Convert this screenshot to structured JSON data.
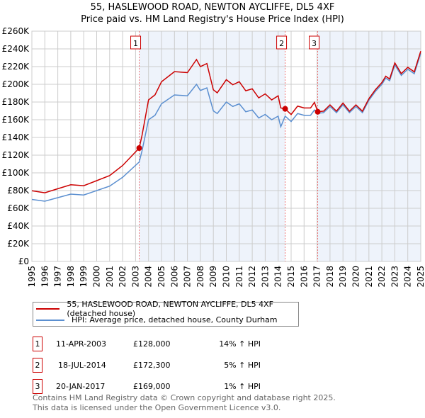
{
  "title": "55, HASLEWOOD ROAD, NEWTON AYCLIFFE, DL5 4XF",
  "subtitle": "Price paid vs. HM Land Registry's House Price Index (HPI)",
  "chart_data": {
    "type": "line",
    "xlim": [
      1995,
      2025
    ],
    "ylim": [
      0,
      260000
    ],
    "yticks": [
      0,
      20000,
      40000,
      60000,
      80000,
      100000,
      120000,
      140000,
      160000,
      180000,
      200000,
      220000,
      240000,
      260000
    ],
    "ytick_labels": [
      "£0",
      "£20K",
      "£40K",
      "£60K",
      "£80K",
      "£100K",
      "£120K",
      "£140K",
      "£160K",
      "£180K",
      "£200K",
      "£220K",
      "£240K",
      "£260K"
    ],
    "xtick_labels": [
      "1995",
      "1996",
      "1997",
      "1998",
      "1999",
      "2000",
      "2001",
      "2002",
      "2003",
      "2004",
      "2005",
      "2006",
      "2007",
      "2008",
      "2009",
      "2010",
      "2011",
      "2012",
      "2013",
      "2014",
      "2015",
      "2016",
      "2017",
      "2018",
      "2019",
      "2020",
      "2021",
      "2022",
      "2023",
      "2024",
      "2025"
    ],
    "grid": true,
    "x": [
      1995,
      1996,
      1997,
      1998,
      1999,
      2000,
      2001,
      2002,
      2003.28,
      2003.5,
      2004,
      2004.5,
      2005,
      2006,
      2007,
      2007.7,
      2008,
      2008.5,
      2009,
      2009.3,
      2010,
      2010.5,
      2011,
      2011.5,
      2012,
      2012.5,
      2013,
      2013.5,
      2014,
      2014.2,
      2014.54,
      2015,
      2015.5,
      2016,
      2016.5,
      2016.8,
      2017.05,
      2017.5,
      2018,
      2018.5,
      2019,
      2019.5,
      2020,
      2020.5,
      2021,
      2021.5,
      2022,
      2022.3,
      2022.6,
      2023,
      2023.5,
      2024,
      2024.5,
      2025
    ],
    "series": [
      {
        "name": "55, HASLEWOOD ROAD, NEWTON AYCLIFFE, DL5 4XF (detached house)",
        "color": "#cc0000",
        "values": [
          79800,
          77500,
          82100,
          86600,
          85500,
          91200,
          96900,
          108300,
          128000,
          142500,
          182400,
          188100,
          202900,
          214300,
          213200,
          228000,
          220000,
          223400,
          193800,
          190400,
          205200,
          199500,
          202900,
          192700,
          194900,
          184700,
          189200,
          182400,
          187000,
          173300,
          172300,
          165900,
          175400,
          173300,
          173300,
          179600,
          169000,
          169700,
          176800,
          169700,
          178800,
          169700,
          176800,
          169700,
          183800,
          193900,
          202000,
          209100,
          206000,
          224200,
          212100,
          219200,
          214100,
          237400
        ]
      },
      {
        "name": "HPI: Average price, detached house, County Durham",
        "color": "#5b8fd0",
        "values": [
          70000,
          68000,
          72000,
          76000,
          75000,
          80000,
          85000,
          95000,
          112300,
          125000,
          160000,
          165000,
          178000,
          188000,
          187000,
          200000,
          193000,
          196000,
          170000,
          167000,
          180000,
          175000,
          178000,
          169000,
          171000,
          162000,
          166000,
          160000,
          164000,
          152000,
          164100,
          158000,
          167000,
          165000,
          165000,
          171000,
          167300,
          168000,
          175000,
          168000,
          177000,
          168000,
          175000,
          168000,
          182000,
          192000,
          200000,
          207000,
          204000,
          222000,
          210000,
          217000,
          212000,
          235000
        ]
      }
    ],
    "sales": [
      {
        "label": "1",
        "x": 2003.28,
        "y": 128000
      },
      {
        "label": "2",
        "x": 2014.54,
        "y": 172300
      },
      {
        "label": "3",
        "x": 2017.05,
        "y": 169000
      }
    ]
  },
  "legend": {
    "red": "55, HASLEWOOD ROAD, NEWTON AYCLIFFE, DL5 4XF (detached house)",
    "blue": "HPI: Average price, detached house, County Durham"
  },
  "table": [
    {
      "num": "1",
      "date": "11-APR-2003",
      "price": "£128,000",
      "hpi": "14% ↑ HPI"
    },
    {
      "num": "2",
      "date": "18-JUL-2014",
      "price": "£172,300",
      "hpi": "5% ↑ HPI"
    },
    {
      "num": "3",
      "date": "20-JAN-2017",
      "price": "£169,000",
      "hpi": "1% ↑ HPI"
    }
  ],
  "footer": [
    "Contains HM Land Registry data © Crown copyright and database right 2025.",
    "This data is licensed under the Open Government Licence v3.0."
  ]
}
